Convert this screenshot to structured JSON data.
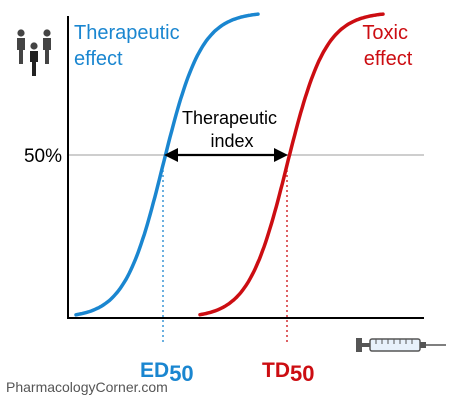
{
  "chart_data": {
    "type": "line",
    "title": "",
    "xlabel": "",
    "ylabel": "",
    "y_reference_label": "50%",
    "y_reference_value": 50,
    "ylim": [
      0,
      100
    ],
    "grid": false,
    "series": [
      {
        "name": "Therapeutic effect",
        "label_lines": [
          "Therapeutic",
          "effect"
        ],
        "color": "#1a86d0",
        "midpoint_label": "ED",
        "midpoint_subscript": "50"
      },
      {
        "name": "Toxic effect",
        "label_lines": [
          "Toxic",
          "effect"
        ],
        "color": "#cc0d12",
        "midpoint_label": "TD",
        "midpoint_subscript": "50"
      }
    ],
    "annotation": {
      "lines": [
        "Therapeutic",
        "index"
      ],
      "type": "double-arrow between ED50 and TD50"
    }
  },
  "icons": {
    "population": "people-group-icon",
    "dose": "syringe-icon"
  },
  "watermark": "PharmacologyCorner.com",
  "colors": {
    "axis": "#000000",
    "reference_line": "#bdbdbd",
    "watermark": "#555555"
  }
}
